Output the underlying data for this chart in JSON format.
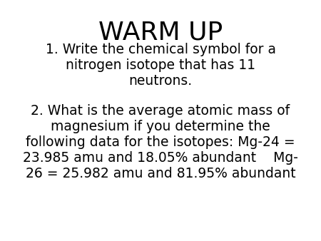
{
  "title": "WARM UP",
  "title_fontsize": 26,
  "title_fontweight": "normal",
  "q1_lines": [
    "1. Write the chemical symbol for a",
    "nitrogen isotope that has 11",
    "neutrons."
  ],
  "q2_lines": [
    "2. What is the average atomic mass of",
    "magnesium if you determine the",
    "following data for the isotopes: Mg-24 =",
    "23.985 amu and 18.05% abundant    Mg-",
    "26 = 25.982 amu and 81.95% abundant"
  ],
  "body_fontsize": 13.5,
  "text_color": "#000000",
  "background_color": "#ffffff"
}
